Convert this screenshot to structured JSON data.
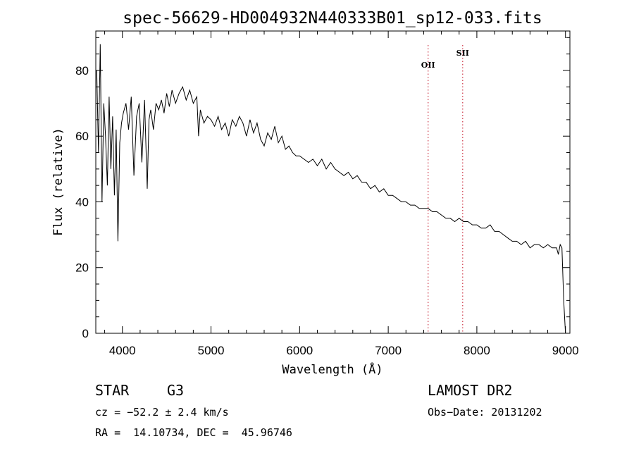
{
  "chart_data": {
    "type": "line",
    "title": "spec-56629-HD004932N440333B01_sp12-033.fits",
    "xlabel": "Wavelength (Å)",
    "ylabel": "Flux (relative)",
    "xlim": [
      3700,
      9050
    ],
    "ylim": [
      0,
      92
    ],
    "x_ticks": [
      4000,
      5000,
      6000,
      7000,
      8000,
      9000
    ],
    "y_ticks": [
      0,
      20,
      40,
      60,
      80
    ],
    "grid": false,
    "series": [
      {
        "x": [
          3710,
          3730,
          3750,
          3770,
          3790,
          3810,
          3830,
          3850,
          3870,
          3890,
          3910,
          3930,
          3950,
          3970,
          3990,
          4010,
          4040,
          4070,
          4100,
          4130,
          4160,
          4190,
          4220,
          4250,
          4280,
          4300,
          4320,
          4350,
          4380,
          4410,
          4440,
          4470,
          4500,
          4530,
          4560,
          4600,
          4640,
          4680,
          4720,
          4760,
          4800,
          4840,
          4860,
          4880,
          4920,
          4960,
          5000,
          5040,
          5080,
          5120,
          5160,
          5200,
          5240,
          5280,
          5320,
          5360,
          5400,
          5440,
          5480,
          5520,
          5560,
          5600,
          5640,
          5680,
          5720,
          5760,
          5800,
          5840,
          5880,
          5920,
          5960,
          6000,
          6050,
          6100,
          6150,
          6200,
          6250,
          6300,
          6350,
          6400,
          6450,
          6500,
          6550,
          6600,
          6650,
          6700,
          6750,
          6800,
          6850,
          6900,
          6950,
          7000,
          7050,
          7100,
          7150,
          7200,
          7250,
          7300,
          7350,
          7400,
          7450,
          7500,
          7550,
          7600,
          7650,
          7700,
          7750,
          7800,
          7850,
          7900,
          7950,
          8000,
          8050,
          8100,
          8150,
          8200,
          8250,
          8300,
          8350,
          8400,
          8450,
          8500,
          8550,
          8600,
          8650,
          8700,
          8750,
          8800,
          8850,
          8900,
          8920,
          8940,
          8960,
          8980,
          9000
        ],
        "y": [
          80,
          55,
          88,
          40,
          70,
          60,
          45,
          72,
          50,
          66,
          42,
          62,
          28,
          58,
          64,
          67,
          70,
          62,
          72,
          48,
          66,
          70,
          52,
          71,
          44,
          65,
          68,
          62,
          70,
          68,
          71,
          67,
          73,
          69,
          74,
          70,
          73,
          75,
          71,
          74,
          70,
          72,
          60,
          68,
          64,
          66,
          65,
          63,
          66,
          62,
          64,
          60,
          65,
          63,
          66,
          64,
          60,
          65,
          61,
          64,
          59,
          57,
          61,
          59,
          63,
          58,
          60,
          56,
          57,
          55,
          54,
          54,
          53,
          52,
          53,
          51,
          53,
          50,
          52,
          50,
          49,
          48,
          49,
          47,
          48,
          46,
          46,
          44,
          45,
          43,
          44,
          42,
          42,
          41,
          40,
          40,
          39,
          39,
          38,
          38,
          38,
          37,
          37,
          36,
          35,
          35,
          34,
          35,
          34,
          34,
          33,
          33,
          32,
          32,
          33,
          31,
          31,
          30,
          29,
          28,
          28,
          27,
          28,
          26,
          27,
          27,
          26,
          27,
          26,
          26,
          24,
          27,
          26,
          10,
          0
        ]
      }
    ],
    "annotations": [
      {
        "label": "OII",
        "x": 7450
      },
      {
        "label": "SII",
        "x": 7840
      }
    ]
  },
  "info": {
    "class": "STAR",
    "subclass": "G3",
    "cz": "cz = −52.2 ± 2.4 km/s",
    "coords": "RA =  14.10734, DEC =  45.96746",
    "survey": "LAMOST DR2",
    "obs_date": "Obs−Date: 20131202"
  }
}
